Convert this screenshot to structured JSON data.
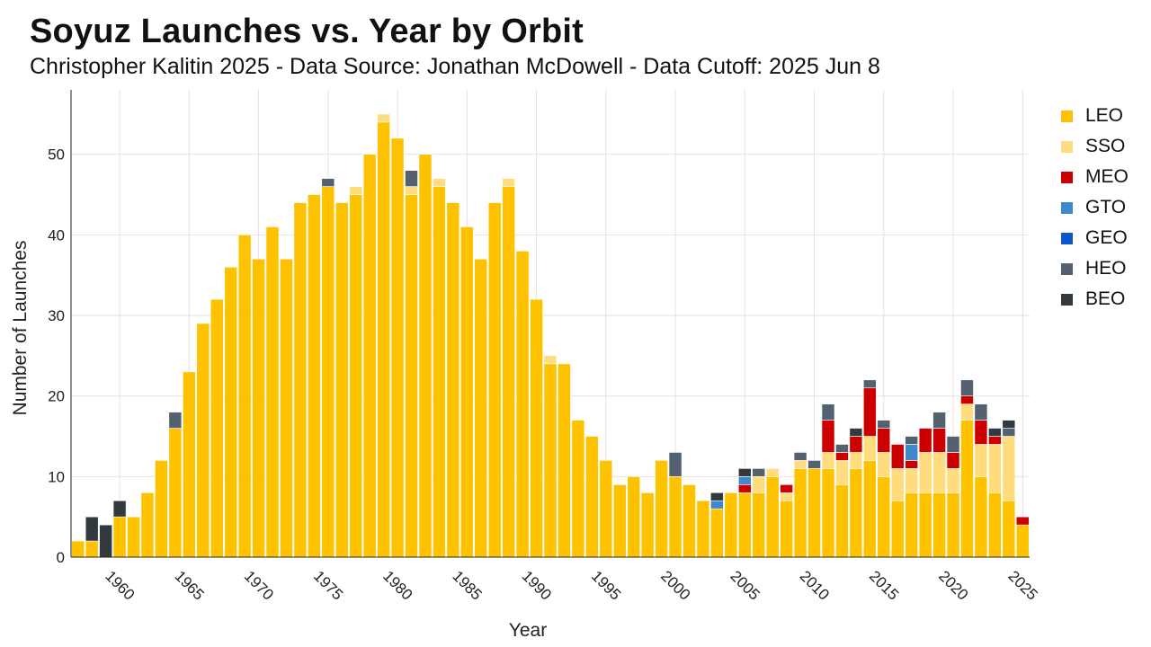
{
  "chart_data": {
    "type": "bar",
    "stacked": true,
    "title": "Soyuz Launches vs. Year by Orbit",
    "subtitle": "Christopher Kalitin 2025 - Data Source: Jonathan McDowell - Data Cutoff: 2025 Jun 8",
    "xlabel": "Year",
    "ylabel": "Number of Launches",
    "ylim": [
      0,
      58
    ],
    "y_ticks": [
      0,
      10,
      20,
      30,
      40,
      50
    ],
    "x_ticks": [
      "1960",
      "1965",
      "1970",
      "1975",
      "1980",
      "1985",
      "1990",
      "1995",
      "2000",
      "2005",
      "2010",
      "2015",
      "2020",
      "2025"
    ],
    "grid": true,
    "legend_position": "right",
    "categories": [
      1957,
      1958,
      1959,
      1960,
      1961,
      1962,
      1963,
      1964,
      1965,
      1966,
      1967,
      1968,
      1969,
      1970,
      1971,
      1972,
      1973,
      1974,
      1975,
      1976,
      1977,
      1978,
      1979,
      1980,
      1981,
      1982,
      1983,
      1984,
      1985,
      1986,
      1987,
      1988,
      1989,
      1990,
      1991,
      1992,
      1993,
      1994,
      1995,
      1996,
      1997,
      1998,
      1999,
      2000,
      2001,
      2002,
      2003,
      2004,
      2005,
      2006,
      2007,
      2008,
      2009,
      2010,
      2011,
      2012,
      2013,
      2014,
      2015,
      2016,
      2017,
      2018,
      2019,
      2020,
      2021,
      2022,
      2023,
      2024,
      2025
    ],
    "series": [
      {
        "name": "LEO",
        "color": "#FFC200",
        "values": [
          2,
          2,
          0,
          5,
          5,
          8,
          12,
          16,
          23,
          29,
          32,
          36,
          40,
          37,
          41,
          37,
          44,
          45,
          46,
          44,
          45,
          50,
          54,
          52,
          45,
          50,
          46,
          44,
          41,
          37,
          44,
          46,
          38,
          32,
          24,
          24,
          17,
          15,
          12,
          9,
          10,
          8,
          12,
          10,
          9,
          7,
          6,
          8,
          8,
          8,
          10,
          7,
          11,
          11,
          11,
          9,
          11,
          12,
          10,
          7,
          8,
          8,
          8,
          8,
          17,
          10,
          8,
          7,
          4
        ]
      },
      {
        "name": "SSO",
        "color": "#FFDD7E",
        "values": [
          0,
          0,
          0,
          0,
          0,
          0,
          0,
          0,
          0,
          0,
          0,
          0,
          0,
          0,
          0,
          0,
          0,
          0,
          0,
          0,
          1,
          0,
          1,
          0,
          1,
          0,
          1,
          0,
          0,
          0,
          0,
          1,
          0,
          0,
          1,
          0,
          0,
          0,
          0,
          0,
          0,
          0,
          0,
          0,
          0,
          0,
          0,
          0,
          0,
          2,
          1,
          1,
          1,
          0,
          2,
          3,
          2,
          3,
          3,
          4,
          3,
          5,
          5,
          3,
          2,
          4,
          6,
          8,
          0
        ]
      },
      {
        "name": "MEO",
        "color": "#CC0000",
        "values": [
          0,
          0,
          0,
          0,
          0,
          0,
          0,
          0,
          0,
          0,
          0,
          0,
          0,
          0,
          0,
          0,
          0,
          0,
          0,
          0,
          0,
          0,
          0,
          0,
          0,
          0,
          0,
          0,
          0,
          0,
          0,
          0,
          0,
          0,
          0,
          0,
          0,
          0,
          0,
          0,
          0,
          0,
          0,
          0,
          0,
          0,
          0,
          0,
          1,
          0,
          0,
          1,
          0,
          0,
          4,
          1,
          2,
          6,
          3,
          3,
          1,
          3,
          3,
          2,
          1,
          3,
          1,
          0,
          1
        ]
      },
      {
        "name": "GTO",
        "color": "#3F88CC",
        "values": [
          0,
          0,
          0,
          0,
          0,
          0,
          0,
          0,
          0,
          0,
          0,
          0,
          0,
          0,
          0,
          0,
          0,
          0,
          0,
          0,
          0,
          0,
          0,
          0,
          0,
          0,
          0,
          0,
          0,
          0,
          0,
          0,
          0,
          0,
          0,
          0,
          0,
          0,
          0,
          0,
          0,
          0,
          0,
          0,
          0,
          0,
          1,
          0,
          1,
          0,
          0,
          0,
          0,
          0,
          0,
          0,
          0,
          0,
          0,
          0,
          2,
          0,
          0,
          0,
          0,
          0,
          0,
          0,
          0
        ]
      },
      {
        "name": "GEO",
        "color": "#1155CC",
        "values": [
          0,
          0,
          0,
          0,
          0,
          0,
          0,
          0,
          0,
          0,
          0,
          0,
          0,
          0,
          0,
          0,
          0,
          0,
          0,
          0,
          0,
          0,
          0,
          0,
          0,
          0,
          0,
          0,
          0,
          0,
          0,
          0,
          0,
          0,
          0,
          0,
          0,
          0,
          0,
          0,
          0,
          0,
          0,
          0,
          0,
          0,
          0,
          0,
          0,
          0,
          0,
          0,
          0,
          0,
          0,
          0,
          0,
          0,
          0,
          0,
          0,
          0,
          0,
          0,
          0,
          0,
          0,
          0,
          0
        ]
      },
      {
        "name": "HEO",
        "color": "#536170",
        "values": [
          0,
          0,
          0,
          0,
          0,
          0,
          0,
          2,
          0,
          0,
          0,
          0,
          0,
          0,
          0,
          0,
          0,
          0,
          1,
          0,
          0,
          0,
          0,
          0,
          2,
          0,
          0,
          0,
          0,
          0,
          0,
          0,
          0,
          0,
          0,
          0,
          0,
          0,
          0,
          0,
          0,
          0,
          0,
          3,
          0,
          0,
          0,
          0,
          0,
          1,
          0,
          0,
          1,
          1,
          2,
          1,
          0,
          1,
          1,
          0,
          1,
          0,
          2,
          2,
          2,
          2,
          0,
          1,
          0
        ]
      },
      {
        "name": "BEO",
        "color": "#333A3F",
        "values": [
          0,
          3,
          4,
          2,
          0,
          0,
          0,
          0,
          0,
          0,
          0,
          0,
          0,
          0,
          0,
          0,
          0,
          0,
          0,
          0,
          0,
          0,
          0,
          0,
          0,
          0,
          0,
          0,
          0,
          0,
          0,
          0,
          0,
          0,
          0,
          0,
          0,
          0,
          0,
          0,
          0,
          0,
          0,
          0,
          0,
          0,
          1,
          0,
          1,
          0,
          0,
          0,
          0,
          0,
          0,
          0,
          1,
          0,
          0,
          0,
          0,
          0,
          0,
          0,
          0,
          0,
          1,
          1,
          0
        ]
      }
    ]
  }
}
